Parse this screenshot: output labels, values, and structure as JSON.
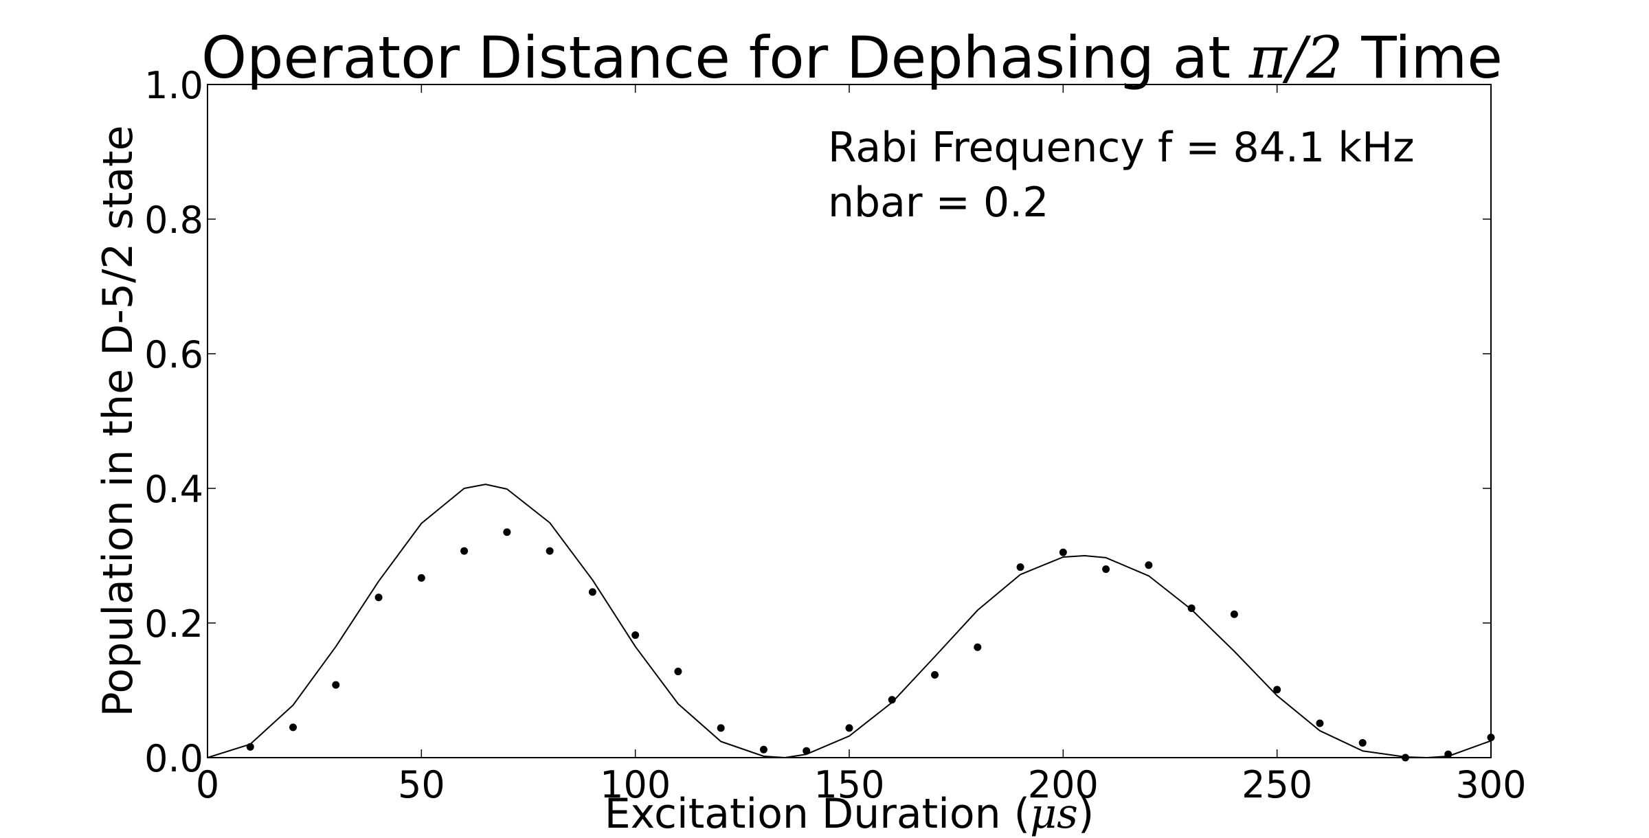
{
  "chart_data": {
    "type": "scatter",
    "title": {
      "prefix": "Operator Distance for Dephasing at ",
      "math": "π/2",
      "suffix": " Time"
    },
    "xlabel": {
      "prefix": "Excitation Duration (",
      "math": "μs",
      "suffix": ")"
    },
    "ylabel": "Population in the D-5/2 state",
    "xlim": [
      0,
      300
    ],
    "ylim": [
      0,
      1.0
    ],
    "x_ticks": [
      0,
      50,
      100,
      150,
      200,
      250,
      300
    ],
    "x_tick_labels": [
      "0",
      "50",
      "100",
      "150",
      "200",
      "250",
      "300"
    ],
    "y_ticks": [
      0.0,
      0.2,
      0.4,
      0.6,
      0.8,
      1.0
    ],
    "y_tick_labels": [
      "0.0",
      "0.2",
      "0.4",
      "0.6",
      "0.8",
      "1.0"
    ],
    "grid": false,
    "annotations": [
      "Rabi Frequency f = 84.1 kHz",
      "nbar = 0.2"
    ],
    "series": [
      {
        "kind": "markers",
        "x": [
          10,
          20,
          30,
          40,
          50,
          60,
          70,
          80,
          90,
          100,
          110,
          120,
          130,
          140,
          150,
          160,
          170,
          180,
          190,
          200,
          210,
          220,
          230,
          240,
          250,
          260,
          270,
          280,
          290,
          300
        ],
        "y": [
          0.016,
          0.045,
          0.108,
          0.238,
          0.267,
          0.307,
          0.335,
          0.307,
          0.246,
          0.182,
          0.128,
          0.044,
          0.012,
          0.01,
          0.044,
          0.086,
          0.123,
          0.164,
          0.283,
          0.305,
          0.28,
          0.286,
          0.222,
          0.213,
          0.101,
          0.051,
          0.022,
          0.0,
          0.005,
          0.03
        ]
      },
      {
        "kind": "line",
        "x": [
          0,
          10,
          20,
          30,
          40,
          50,
          60,
          65,
          70,
          80,
          90,
          100,
          110,
          120,
          130,
          135,
          140,
          150,
          160,
          170,
          180,
          190,
          200,
          205,
          210,
          220,
          230,
          240,
          250,
          260,
          270,
          280,
          285,
          290,
          300
        ],
        "y": [
          0.0,
          0.02,
          0.078,
          0.165,
          0.262,
          0.348,
          0.4,
          0.406,
          0.399,
          0.349,
          0.264,
          0.165,
          0.08,
          0.024,
          0.002,
          0.0,
          0.005,
          0.032,
          0.082,
          0.15,
          0.219,
          0.272,
          0.298,
          0.3,
          0.297,
          0.27,
          0.22,
          0.158,
          0.092,
          0.04,
          0.01,
          0.001,
          0.0,
          0.002,
          0.025
        ]
      }
    ]
  }
}
